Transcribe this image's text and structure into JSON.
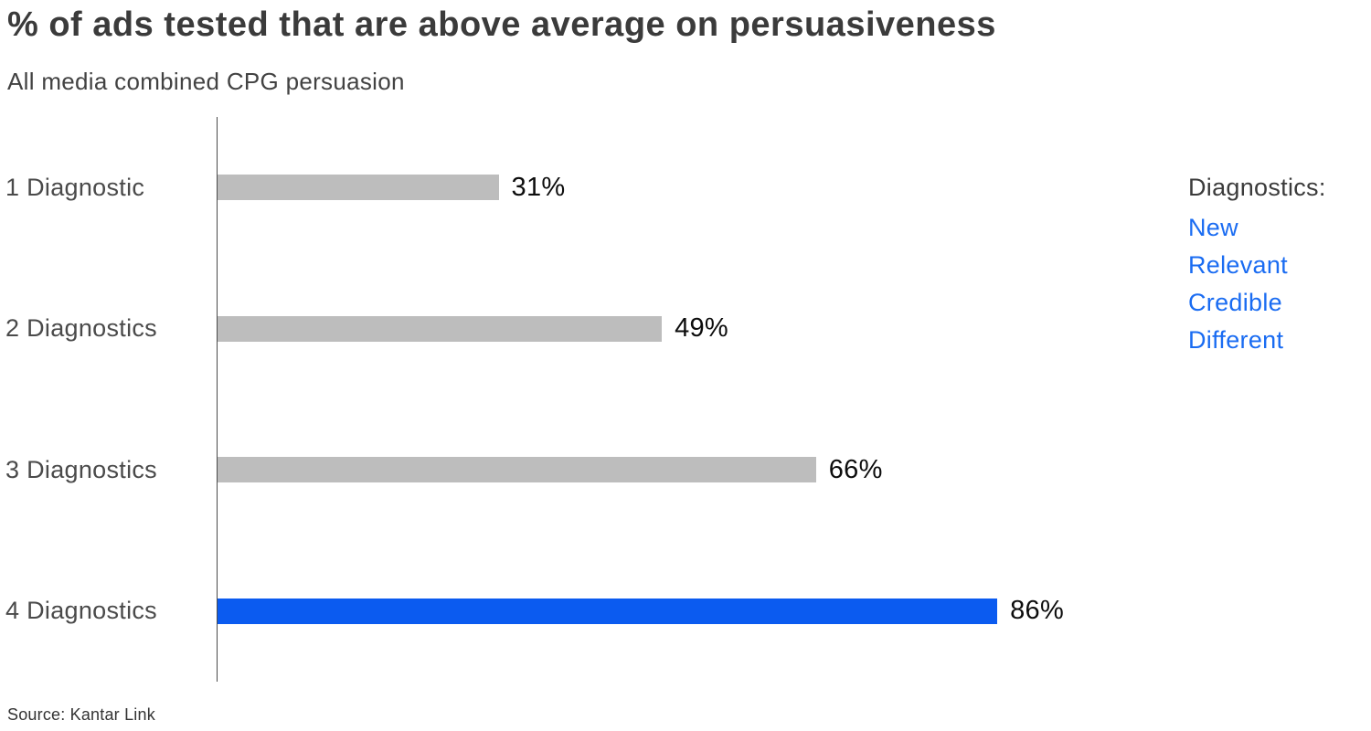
{
  "chart_data": {
    "type": "bar",
    "orientation": "horizontal",
    "title": "% of ads tested that are above average on persuasiveness",
    "subtitle": "All media combined CPG persuasion",
    "categories": [
      "1 Diagnostic",
      "2 Diagnostics",
      "3 Diagnostics",
      "4 Diagnostics"
    ],
    "values": [
      31,
      49,
      66,
      86
    ],
    "value_labels": [
      "31%",
      "49%",
      "66%",
      "86%"
    ],
    "xlim": [
      0,
      100
    ],
    "grid": false,
    "bar_colors": [
      "#bdbdbd",
      "#bdbdbd",
      "#bdbdbd",
      "#0b5bf0"
    ],
    "default_bar_color": "#bdbdbd",
    "highlight_color": "#0b5bf0",
    "legend_position": "right"
  },
  "legend": {
    "title": "Diagnostics:",
    "items": [
      "New",
      "Relevant",
      "Credible",
      "Different"
    ],
    "item_color": "#1a6cf2"
  },
  "source": "Source: Kantar Link",
  "colors": {
    "axis": "#4a4a4a",
    "title_text": "#3b3b3b",
    "label_text": "#4a4a4a",
    "value_text": "#0d0d0d"
  }
}
